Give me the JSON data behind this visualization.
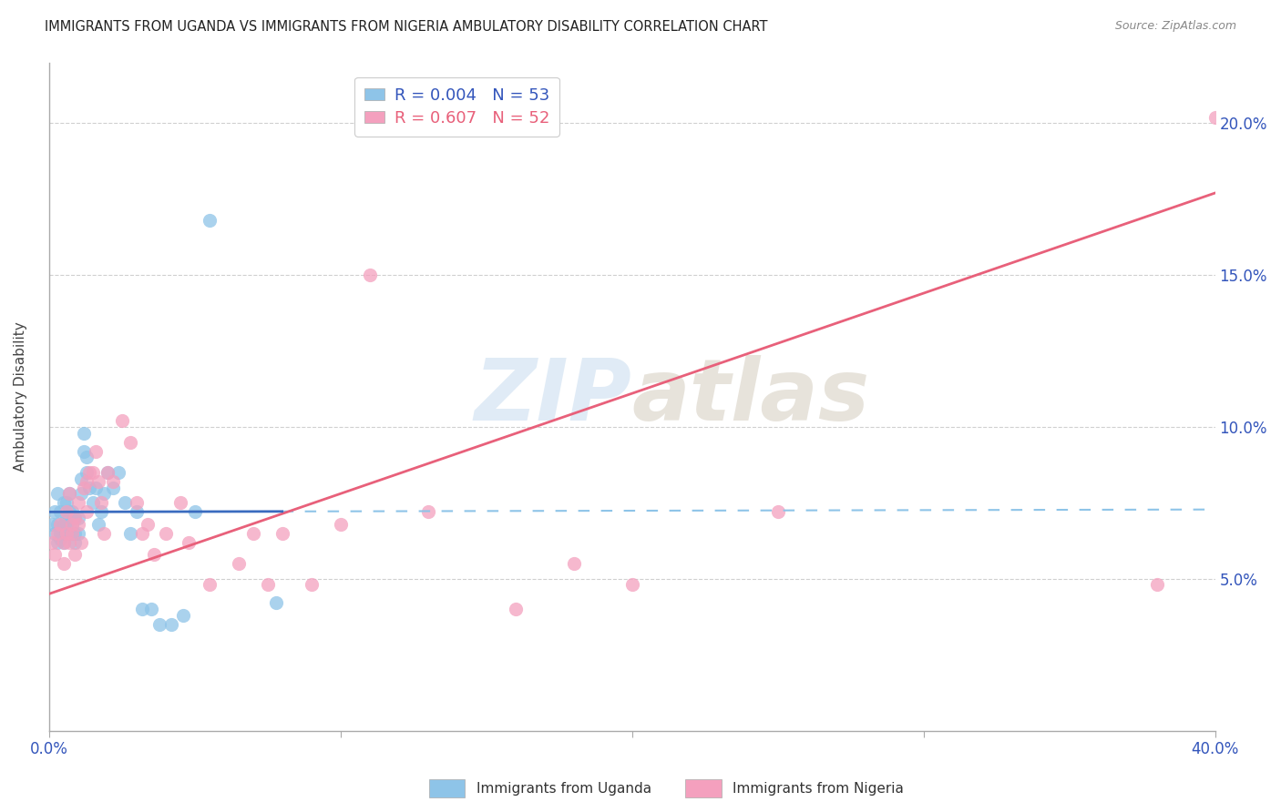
{
  "title": "IMMIGRANTS FROM UGANDA VS IMMIGRANTS FROM NIGERIA AMBULATORY DISABILITY CORRELATION CHART",
  "source": "Source: ZipAtlas.com",
  "ylabel": "Ambulatory Disability",
  "ytick_labels": [
    "5.0%",
    "10.0%",
    "15.0%",
    "20.0%"
  ],
  "xtick_positions": [
    0.0,
    0.1,
    0.2,
    0.3,
    0.4
  ],
  "ytick_positions": [
    0.05,
    0.1,
    0.15,
    0.2
  ],
  "xlim": [
    0.0,
    0.4
  ],
  "ylim": [
    0.0,
    0.22
  ],
  "legend_r1": "R = 0.004",
  "legend_n1": "N = 53",
  "legend_r2": "R = 0.607",
  "legend_n2": "N = 52",
  "color_uganda": "#8ec4e8",
  "color_nigeria": "#f4a0be",
  "color_uganda_line_solid": "#3a6bbf",
  "color_uganda_line_dash": "#8ec4e8",
  "color_nigeria_line": "#e8607a",
  "watermark_color": "#ccdff0",
  "uganda_x": [
    0.001,
    0.002,
    0.002,
    0.003,
    0.003,
    0.003,
    0.004,
    0.004,
    0.004,
    0.005,
    0.005,
    0.005,
    0.005,
    0.006,
    0.006,
    0.006,
    0.007,
    0.007,
    0.007,
    0.008,
    0.008,
    0.008,
    0.009,
    0.009,
    0.009,
    0.01,
    0.01,
    0.011,
    0.011,
    0.012,
    0.012,
    0.013,
    0.013,
    0.014,
    0.015,
    0.016,
    0.017,
    0.018,
    0.019,
    0.02,
    0.022,
    0.024,
    0.026,
    0.028,
    0.03,
    0.032,
    0.035,
    0.038,
    0.042,
    0.046,
    0.05,
    0.055,
    0.078
  ],
  "uganda_y": [
    0.068,
    0.072,
    0.065,
    0.068,
    0.078,
    0.062,
    0.065,
    0.072,
    0.063,
    0.065,
    0.068,
    0.075,
    0.062,
    0.068,
    0.075,
    0.07,
    0.065,
    0.072,
    0.078,
    0.068,
    0.072,
    0.065,
    0.065,
    0.07,
    0.062,
    0.065,
    0.07,
    0.083,
    0.078,
    0.098,
    0.092,
    0.09,
    0.085,
    0.08,
    0.075,
    0.08,
    0.068,
    0.072,
    0.078,
    0.085,
    0.08,
    0.085,
    0.075,
    0.065,
    0.072,
    0.04,
    0.04,
    0.035,
    0.035,
    0.038,
    0.072,
    0.168,
    0.042
  ],
  "nigeria_x": [
    0.001,
    0.002,
    0.003,
    0.004,
    0.005,
    0.005,
    0.006,
    0.006,
    0.007,
    0.007,
    0.008,
    0.008,
    0.009,
    0.009,
    0.01,
    0.01,
    0.011,
    0.012,
    0.013,
    0.013,
    0.014,
    0.015,
    0.016,
    0.017,
    0.018,
    0.019,
    0.02,
    0.022,
    0.025,
    0.028,
    0.03,
    0.032,
    0.034,
    0.036,
    0.04,
    0.045,
    0.048,
    0.055,
    0.065,
    0.07,
    0.075,
    0.08,
    0.09,
    0.1,
    0.11,
    0.13,
    0.16,
    0.18,
    0.2,
    0.25,
    0.38,
    0.4
  ],
  "nigeria_y": [
    0.062,
    0.058,
    0.065,
    0.068,
    0.055,
    0.062,
    0.072,
    0.065,
    0.062,
    0.078,
    0.065,
    0.068,
    0.058,
    0.07,
    0.068,
    0.075,
    0.062,
    0.08,
    0.072,
    0.082,
    0.085,
    0.085,
    0.092,
    0.082,
    0.075,
    0.065,
    0.085,
    0.082,
    0.102,
    0.095,
    0.075,
    0.065,
    0.068,
    0.058,
    0.065,
    0.075,
    0.062,
    0.048,
    0.055,
    0.065,
    0.048,
    0.065,
    0.048,
    0.068,
    0.15,
    0.072,
    0.04,
    0.055,
    0.048,
    0.072,
    0.048,
    0.202
  ]
}
